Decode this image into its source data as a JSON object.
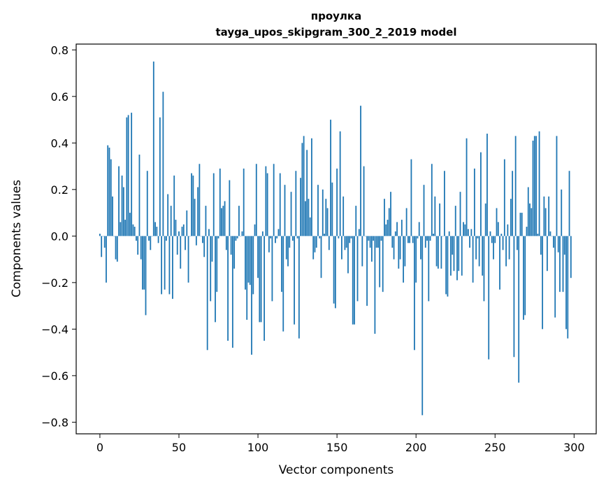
{
  "chart_data": {
    "type": "bar",
    "title": "проулка",
    "subtitle": "tayga_upos_skipgram_300_2_2019 model",
    "xlabel": "Vector components",
    "ylabel": "Components values",
    "xlim": [
      -15,
      314
    ],
    "ylim": [
      -0.85,
      0.825
    ],
    "xticks": [
      0,
      50,
      100,
      150,
      200,
      250,
      300
    ],
    "yticks": [
      -0.8,
      -0.6,
      -0.4,
      -0.2,
      0.0,
      0.2,
      0.4,
      0.6,
      0.8
    ],
    "xtick_labels": [
      "0",
      "50",
      "100",
      "150",
      "200",
      "250",
      "300"
    ],
    "ytick_labels": [
      "−0.8",
      "−0.6",
      "−0.4",
      "−0.2",
      "0.0",
      "0.2",
      "0.4",
      "0.6",
      "0.8"
    ],
    "bar_color": "#1f77b4",
    "values": [
      0.01,
      -0.09,
      0.0,
      -0.05,
      -0.2,
      0.39,
      0.38,
      0.33,
      0.17,
      0.0,
      -0.1,
      -0.11,
      0.3,
      0.06,
      0.26,
      0.21,
      0.07,
      0.51,
      0.52,
      0.1,
      0.53,
      0.05,
      0.04,
      -0.02,
      -0.08,
      0.35,
      -0.1,
      -0.23,
      -0.23,
      -0.34,
      0.28,
      -0.02,
      -0.06,
      0.0,
      0.75,
      0.06,
      0.04,
      -0.03,
      0.51,
      -0.25,
      0.62,
      -0.23,
      -0.02,
      0.18,
      -0.25,
      0.13,
      -0.27,
      0.26,
      0.07,
      -0.08,
      0.02,
      -0.14,
      0.04,
      0.05,
      -0.06,
      0.11,
      -0.2,
      0.0,
      0.27,
      0.26,
      0.16,
      -0.04,
      0.21,
      0.31,
      0.0,
      -0.03,
      -0.09,
      0.13,
      -0.49,
      0.03,
      -0.28,
      -0.11,
      0.27,
      -0.37,
      -0.24,
      -0.01,
      0.29,
      0.12,
      0.13,
      0.15,
      -0.06,
      -0.45,
      0.24,
      -0.08,
      -0.48,
      -0.14,
      -0.02,
      -0.01,
      0.13,
      0.0,
      0.02,
      0.29,
      -0.23,
      -0.36,
      -0.2,
      -0.21,
      -0.51,
      -0.25,
      0.05,
      0.31,
      -0.18,
      -0.37,
      -0.37,
      0.02,
      -0.45,
      0.3,
      0.27,
      -0.07,
      -0.01,
      -0.28,
      0.31,
      -0.03,
      -0.01,
      0.03,
      0.27,
      -0.24,
      -0.41,
      0.22,
      -0.1,
      -0.13,
      -0.05,
      0.19,
      -0.02,
      -0.38,
      0.28,
      -0.01,
      -0.44,
      0.25,
      0.4,
      0.43,
      0.15,
      0.37,
      0.16,
      0.08,
      0.42,
      -0.1,
      -0.07,
      -0.05,
      0.22,
      -0.01,
      -0.18,
      0.2,
      0.01,
      0.16,
      0.12,
      -0.06,
      0.5,
      0.23,
      -0.29,
      -0.31,
      0.29,
      -0.01,
      0.45,
      -0.1,
      0.17,
      -0.06,
      -0.05,
      -0.16,
      -0.03,
      -0.01,
      -0.38,
      -0.38,
      0.13,
      -0.28,
      0.03,
      0.56,
      -0.13,
      0.3,
      0.0,
      -0.3,
      -0.02,
      -0.05,
      -0.11,
      -0.02,
      -0.42,
      -0.05,
      -0.05,
      -0.22,
      -0.02,
      -0.24,
      0.16,
      0.05,
      0.07,
      0.12,
      0.19,
      -0.05,
      -0.1,
      0.02,
      0.06,
      -0.14,
      -0.1,
      0.07,
      -0.2,
      -0.13,
      0.12,
      -0.03,
      -0.03,
      0.33,
      -0.03,
      -0.49,
      -0.2,
      -0.01,
      0.06,
      -0.1,
      -0.77,
      0.22,
      -0.05,
      -0.02,
      -0.28,
      -0.02,
      0.31,
      0.01,
      0.17,
      -0.13,
      -0.14,
      0.14,
      -0.14,
      0.0,
      0.28,
      -0.25,
      -0.26,
      0.02,
      -0.17,
      -0.08,
      -0.15,
      0.13,
      -0.19,
      -0.15,
      0.19,
      -0.17,
      0.06,
      0.05,
      0.42,
      0.03,
      -0.05,
      0.03,
      -0.2,
      0.29,
      -0.1,
      -0.01,
      -0.13,
      0.36,
      -0.17,
      -0.28,
      0.14,
      0.44,
      -0.53,
      0.02,
      -0.03,
      -0.1,
      -0.03,
      0.12,
      0.06,
      -0.23,
      0.01,
      -0.06,
      0.33,
      -0.13,
      0.05,
      -0.1,
      0.16,
      0.28,
      -0.52,
      0.43,
      -0.06,
      -0.63,
      0.1,
      0.1,
      -0.36,
      -0.34,
      0.04,
      0.21,
      0.14,
      0.12,
      0.41,
      0.43,
      0.43,
      0.01,
      0.45,
      -0.08,
      -0.4,
      0.17,
      0.12,
      -0.15,
      0.17,
      0.02,
      0.0,
      -0.05,
      -0.35,
      0.43,
      -0.07,
      -0.24,
      0.2,
      -0.24,
      -0.08,
      -0.4,
      -0.44,
      0.28,
      -0.18
    ]
  }
}
